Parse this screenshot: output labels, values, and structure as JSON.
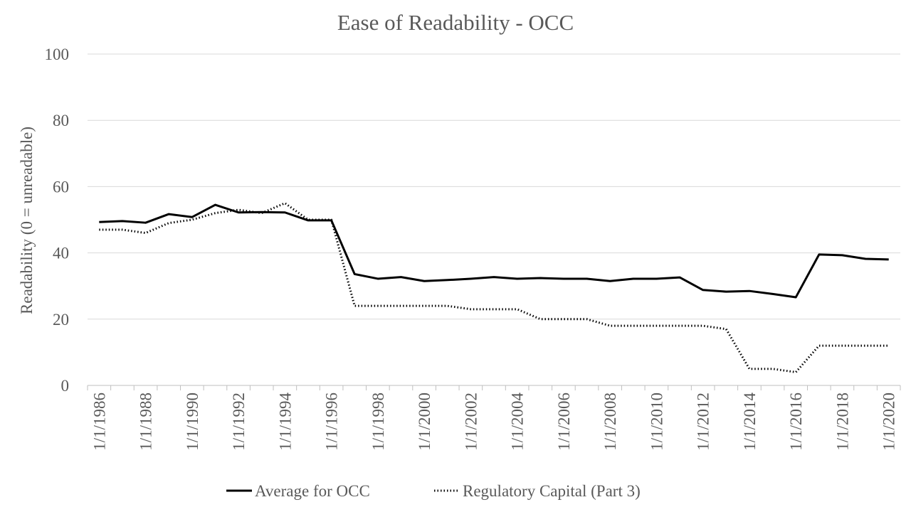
{
  "chart_data": {
    "type": "line",
    "title": "Ease of Readability - OCC",
    "ylabel": "Readability (0 = unreadable)",
    "xlabel": "",
    "ylim": [
      0,
      100
    ],
    "y_ticks": [
      0,
      20,
      40,
      60,
      80,
      100
    ],
    "grid": "horizontal",
    "legend_position": "bottom",
    "x": [
      "1/1/1986",
      "1/1/1987",
      "1/1/1988",
      "1/1/1989",
      "1/1/1990",
      "1/1/1991",
      "1/1/1992",
      "1/1/1993",
      "1/1/1994",
      "1/1/1995",
      "1/1/1996",
      "1/1/1997",
      "1/1/1998",
      "1/1/1999",
      "1/1/2000",
      "1/1/2001",
      "1/1/2002",
      "1/1/2003",
      "1/1/2004",
      "1/1/2005",
      "1/1/2006",
      "1/1/2007",
      "1/1/2008",
      "1/1/2009",
      "1/1/2010",
      "1/1/2011",
      "1/1/2012",
      "1/1/2013",
      "1/1/2014",
      "1/1/2015",
      "1/1/2016",
      "1/1/2017",
      "1/1/2018",
      "1/1/2019",
      "1/1/2020"
    ],
    "x_tick_labels": [
      "1/1/1986",
      "",
      "1/1/1988",
      "",
      "1/1/1990",
      "",
      "1/1/1992",
      "",
      "1/1/1994",
      "",
      "1/1/1996",
      "",
      "1/1/1998",
      "",
      "1/1/2000",
      "",
      "1/1/2002",
      "",
      "1/1/2004",
      "",
      "1/1/2006",
      "",
      "1/1/2008",
      "",
      "1/1/2010",
      "",
      "1/1/2012",
      "",
      "1/1/2014",
      "",
      "1/1/2016",
      "",
      "1/1/2018",
      "",
      "1/1/2020"
    ],
    "series": [
      {
        "name": "Average for OCC",
        "style": "solid",
        "color": "#000000",
        "values": [
          49.3,
          49.6,
          49.1,
          51.7,
          50.8,
          54.5,
          52.2,
          52.3,
          52.2,
          49.8,
          49.8,
          33.6,
          32.2,
          32.7,
          31.5,
          31.8,
          32.2,
          32.7,
          32.2,
          32.4,
          32.2,
          32.2,
          31.5,
          32.2,
          32.2,
          32.6,
          28.8,
          28.3,
          28.5,
          27.6,
          26.6,
          39.5,
          39.3,
          38.2,
          38.0
        ]
      },
      {
        "name": "Regulatory Capital (Part 3)",
        "style": "dotted",
        "color": "#000000",
        "values": [
          47,
          47,
          46,
          49,
          50,
          52,
          53,
          52,
          55,
          50,
          50,
          24,
          24,
          24,
          24,
          24,
          23,
          23,
          23,
          20,
          20,
          20,
          18,
          18,
          18,
          18,
          18,
          17,
          5,
          5,
          4,
          12,
          12,
          12,
          12
        ]
      }
    ]
  }
}
